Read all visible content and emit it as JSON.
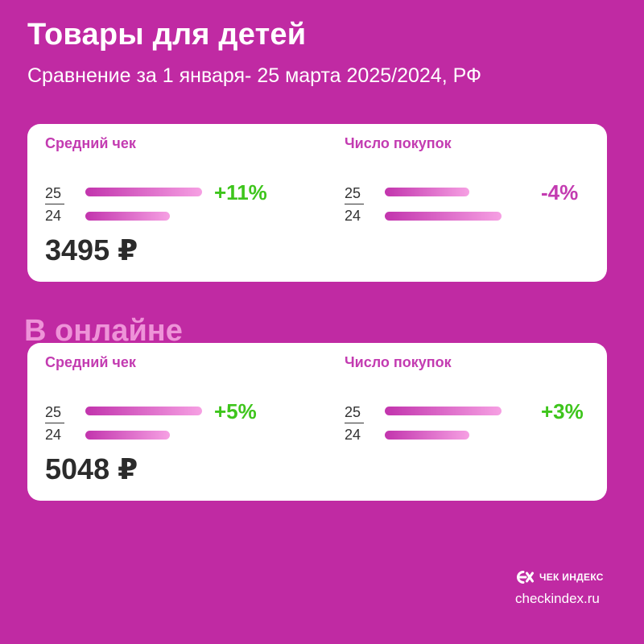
{
  "header": {
    "title": "Товары для детей",
    "subtitle": "Сравнение за 1 января- 25 марта 2025/2024, РФ"
  },
  "chart_data": [
    {
      "type": "bar",
      "section": "",
      "panels": [
        {
          "label": "Средний чек",
          "categories": [
            "25",
            "24"
          ],
          "values": [
            1.11,
            1.0
          ],
          "change": "+11%",
          "change_color": "#3ec51c",
          "value_text": "3495 ₽"
        },
        {
          "label": "Число покупок",
          "categories": [
            "25",
            "24"
          ],
          "values": [
            0.96,
            1.0
          ],
          "change": "-4%",
          "change_color": "#c33bb1",
          "value_text": ""
        }
      ]
    },
    {
      "type": "bar",
      "section": "В онлайне",
      "panels": [
        {
          "label": "Средний чек",
          "categories": [
            "25",
            "24"
          ],
          "values": [
            1.05,
            1.0
          ],
          "change": "+5%",
          "change_color": "#3ec51c",
          "value_text": "5048 ₽"
        },
        {
          "label": "Число покупок",
          "categories": [
            "25",
            "24"
          ],
          "values": [
            1.03,
            1.0
          ],
          "change": "+3%",
          "change_color": "#3ec51c",
          "value_text": ""
        }
      ]
    }
  ],
  "branding": {
    "logo_icon": "checkindex-logo-icon",
    "name": "ЧЕК ИНДЕКС",
    "site": "checkindex.ru"
  }
}
